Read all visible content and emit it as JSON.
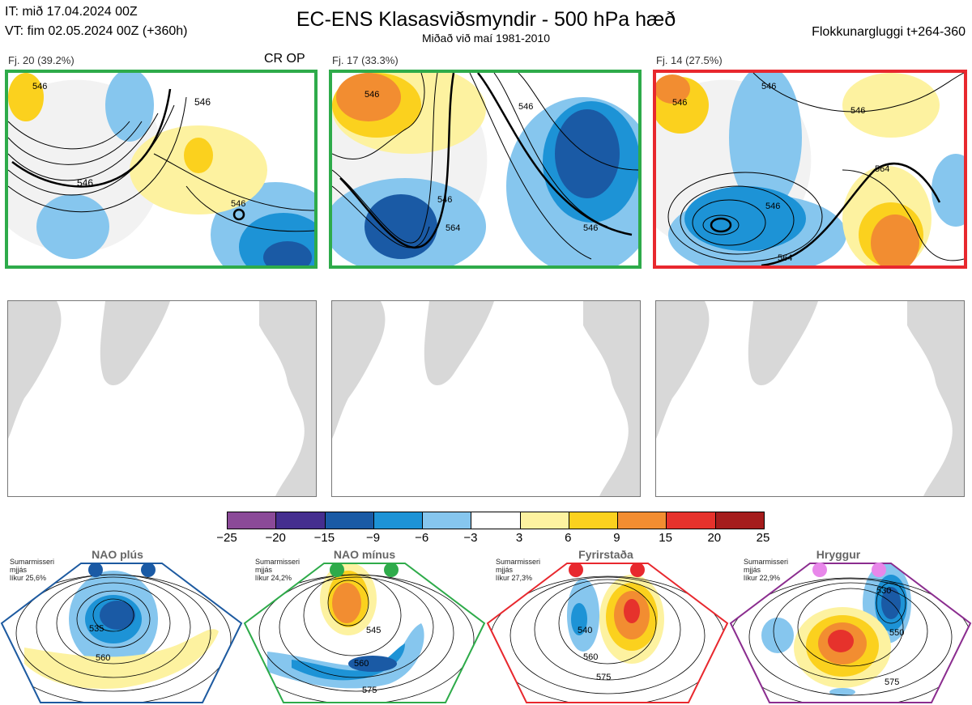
{
  "header": {
    "it": "IT: mið 17.04.2024 00Z",
    "vt": "VT: fim 02.05.2024 00Z  (+360h)",
    "title": "EC-ENS Klasasviðsmyndir - 500 hPa hæð",
    "subtitle": "Miðað við maí 1981-2010",
    "window": "Flokkunargluggi t+264-360"
  },
  "panels": [
    {
      "label": "Fj. 20 (39.2%)",
      "tag": "CR OP",
      "border": "#2eab4a",
      "contours": [
        "546",
        "546",
        "546",
        "546"
      ]
    },
    {
      "label": "Fj. 17 (33.3%)",
      "tag": "",
      "border": "#2eab4a",
      "contours": [
        "546",
        "546",
        "546",
        "564",
        "546"
      ]
    },
    {
      "label": "Fj. 14 (27.5%)",
      "tag": "",
      "border": "#e8282e",
      "contours": [
        "546",
        "546",
        "546",
        "564",
        "546",
        "564"
      ]
    }
  ],
  "colorbar": {
    "ticks": [
      "−25",
      "−20",
      "−15",
      "−9",
      "−6",
      "−3",
      "3",
      "6",
      "9",
      "15",
      "20",
      "25"
    ],
    "colors": [
      "#8b4a98",
      "#452e8f",
      "#1a5aa5",
      "#1d93d6",
      "#86c6ee",
      "#ffffff",
      "#fdf2a0",
      "#fbd11e",
      "#f28d31",
      "#e6322c",
      "#a51c1c"
    ]
  },
  "sectors": [
    {
      "label": "NAO plús",
      "note": [
        "Sumarmisseri",
        "mjjás",
        "líkur 25,6%"
      ],
      "border": "#1d5aa0",
      "dot": "#1a5aa5",
      "contours": [
        "535",
        "560"
      ]
    },
    {
      "label": "NAO mínus",
      "note": [
        "Sumarmisseri",
        "mjjás",
        "líkur 24,2%"
      ],
      "border": "#2eab4a",
      "dot": "#2eab4a",
      "contours": [
        "545",
        "560",
        "575"
      ]
    },
    {
      "label": "Fyrirstaða",
      "note": [
        "Sumarmisseri",
        "mjjás",
        "líkur 27,3%"
      ],
      "border": "#e8282e",
      "dot": "#e8282e",
      "contours": [
        "540",
        "560",
        "575"
      ]
    },
    {
      "label": "Hryggur",
      "note": [
        "Sumarmisseri",
        "mjjás",
        "líkur 22,9%"
      ],
      "border": "#8b2d8f",
      "dot": "#e887ea",
      "contours": [
        "530",
        "550",
        "575"
      ]
    }
  ],
  "chart_data": {
    "type": "heatmap",
    "title": "EC-ENS Klasasviðsmyndir - 500 hPa hæð",
    "subtitle": "Miðað við maí 1981-2010",
    "colorbar_ticks": [
      -25,
      -20,
      -15,
      -9,
      -6,
      -3,
      3,
      6,
      9,
      15,
      20,
      25
    ],
    "clusters": [
      {
        "name": "Fj. 20",
        "percent": 39.2
      },
      {
        "name": "Fj. 17",
        "percent": 33.3
      },
      {
        "name": "Fj. 14",
        "percent": 27.5
      }
    ],
    "regimes": [
      {
        "name": "NAO plús",
        "probability": 25.6
      },
      {
        "name": "NAO mínus",
        "probability": 24.2
      },
      {
        "name": "Fyrirstaða",
        "probability": 27.3
      },
      {
        "name": "Hryggur",
        "probability": 22.9
      }
    ]
  }
}
